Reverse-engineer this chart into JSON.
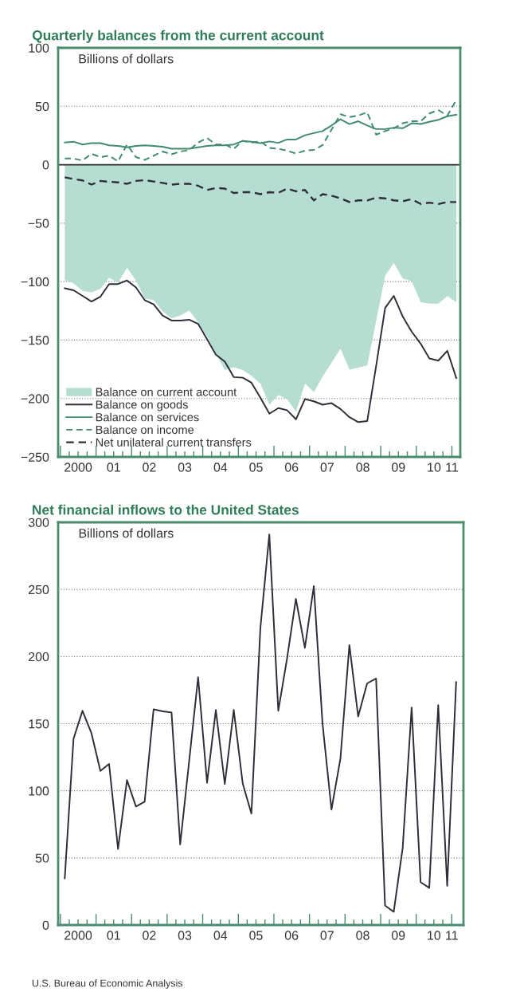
{
  "chart_data": [
    {
      "type": "line",
      "title": "Quarterly balances from the current account",
      "ylabel": "Billions of dollars",
      "x": [
        "2000-02-15",
        "2000-05-15",
        "2000-08-15",
        "2000-11-15",
        "2001-02-15",
        "2001-05-15",
        "2001-08-15",
        "2001-11-15",
        "2002-02-15",
        "2002-05-15",
        "2002-08-15",
        "2002-11-15",
        "2003-02-15",
        "2003-05-15",
        "2003-08-15",
        "2003-11-15",
        "2004-02-15",
        "2004-05-15",
        "2004-08-15",
        "2004-11-15",
        "2005-02-15",
        "2005-05-15",
        "2005-08-15",
        "2005-11-15",
        "2006-02-15",
        "2006-05-15",
        "2006-08-15",
        "2006-11-15",
        "2007-02-15",
        "2007-05-15",
        "2007-08-15",
        "2007-11-15",
        "2008-02-15",
        "2008-05-15",
        "2008-08-15",
        "2008-11-15",
        "2009-02-15",
        "2009-05-15",
        "2009-08-15",
        "2009-11-15",
        "2010-02-15",
        "2010-05-15",
        "2010-08-15",
        "2010-11-15",
        "2011-02-15"
      ],
      "xlim": [
        "1999-12-09",
        "2011-03-28"
      ],
      "xticks": [
        {
          "value": "2000-01-01",
          "label": null
        },
        {
          "value": "2000-04-01",
          "label": null
        },
        {
          "value": "2000-07-01",
          "label": "2000"
        },
        {
          "value": "2000-10-01",
          "label": null
        },
        {
          "value": "2001-01-01",
          "label": null
        },
        {
          "value": "2001-04-01",
          "label": null
        },
        {
          "value": "2001-07-01",
          "label": "01"
        },
        {
          "value": "2001-10-01",
          "label": null
        },
        {
          "value": "2002-01-01",
          "label": null
        },
        {
          "value": "2002-04-01",
          "label": null
        },
        {
          "value": "2002-07-01",
          "label": "02"
        },
        {
          "value": "2002-10-01",
          "label": null
        },
        {
          "value": "2003-01-01",
          "label": null
        },
        {
          "value": "2003-04-01",
          "label": null
        },
        {
          "value": "2003-07-01",
          "label": "03"
        },
        {
          "value": "2003-10-01",
          "label": null
        },
        {
          "value": "2004-01-01",
          "label": null
        },
        {
          "value": "2004-04-01",
          "label": null
        },
        {
          "value": "2004-07-01",
          "label": "04"
        },
        {
          "value": "2004-10-01",
          "label": null
        },
        {
          "value": "2005-01-01",
          "label": null
        },
        {
          "value": "2005-04-01",
          "label": null
        },
        {
          "value": "2005-07-01",
          "label": "05"
        },
        {
          "value": "2005-10-01",
          "label": null
        },
        {
          "value": "2006-01-01",
          "label": null
        },
        {
          "value": "2006-04-01",
          "label": null
        },
        {
          "value": "2006-07-01",
          "label": "06"
        },
        {
          "value": "2006-10-01",
          "label": null
        },
        {
          "value": "2007-01-01",
          "label": null
        },
        {
          "value": "2007-04-01",
          "label": null
        },
        {
          "value": "2007-07-01",
          "label": "07"
        },
        {
          "value": "2007-10-01",
          "label": null
        },
        {
          "value": "2008-01-01",
          "label": null
        },
        {
          "value": "2008-04-01",
          "label": null
        },
        {
          "value": "2008-07-01",
          "label": "08"
        },
        {
          "value": "2008-10-01",
          "label": null
        },
        {
          "value": "2009-01-01",
          "label": null
        },
        {
          "value": "2009-04-01",
          "label": null
        },
        {
          "value": "2009-07-01",
          "label": "09"
        },
        {
          "value": "2009-10-01",
          "label": null
        },
        {
          "value": "2010-01-01",
          "label": null
        },
        {
          "value": "2010-04-01",
          "label": null
        },
        {
          "value": "2010-07-01",
          "label": "10"
        },
        {
          "value": "2010-10-01",
          "label": null
        },
        {
          "value": "2011-01-01",
          "label": "11"
        }
      ],
      "ylim": [
        -250,
        100
      ],
      "yticks": [
        {
          "value": -250,
          "label": "−250"
        },
        {
          "value": -200,
          "label": "−200"
        },
        {
          "value": -150,
          "label": "−150"
        },
        {
          "value": -100,
          "label": "−100"
        },
        {
          "value": -50,
          "label": "−50"
        },
        0,
        50,
        100
      ],
      "grid": "y",
      "legend": "bottom left",
      "ref_lines": [
        {
          "axis": "y",
          "value": 0,
          "color": "#2a2a30"
        }
      ],
      "series": [
        {
          "name": "Balance on current account",
          "type": "area",
          "color": "#b5ddd2",
          "values": [
            -98.5,
            -101.4,
            -108,
            -109.3,
            -106.2,
            -96.6,
            -101,
            -88.2,
            -99,
            -114.6,
            -115.8,
            -125.4,
            -131.4,
            -129,
            -124.6,
            -135,
            -147,
            -161.3,
            -175.7,
            -173.3,
            -175.7,
            -180.5,
            -187.3,
            -205.3,
            -197,
            -200.5,
            -211.3,
            -187.3,
            -194.5,
            -181.3,
            -169.3,
            -157.3,
            -175.3,
            -173.6,
            -171.7,
            -133.3,
            -94.9,
            -84,
            -97.3,
            -99.7,
            -117.7,
            -118.9,
            -118.9,
            -112.4,
            -117.7
          ]
        },
        {
          "name": "Balance on goods",
          "color": "#2e2e38",
          "line_style": "solid",
          "values": [
            -105.7,
            -107.4,
            -112.2,
            -117,
            -112.9,
            -102.1,
            -102.1,
            -99,
            -105,
            -115.8,
            -119.4,
            -129,
            -133.3,
            -133.3,
            -132.6,
            -136.2,
            -149.3,
            -162.5,
            -168.5,
            -181.7,
            -182.2,
            -186.5,
            -199.3,
            -213,
            -208.2,
            -210,
            -217.8,
            -200.5,
            -202.4,
            -205.3,
            -204,
            -209,
            -216,
            -220.2,
            -219.3,
            -172,
            -122.5,
            -112.2,
            -130,
            -142.9,
            -153.2,
            -165.7,
            -167.6,
            -159.2,
            -182.5
          ]
        },
        {
          "name": "Balance on services",
          "color": "#3f8b6b",
          "line_style": "solid",
          "values": [
            19,
            19.7,
            17.3,
            18.5,
            18.5,
            16.6,
            16.1,
            14.9,
            16.1,
            16.6,
            16.1,
            15.4,
            13.7,
            13.7,
            13.7,
            14.9,
            16.1,
            16.6,
            16.6,
            17.3,
            20.4,
            19.7,
            18.5,
            19.9,
            18.7,
            21.6,
            21.6,
            25.2,
            27.1,
            28.8,
            33.6,
            38.9,
            34.8,
            37.2,
            33.6,
            30.5,
            30.5,
            31.7,
            31.2,
            35.5,
            34.8,
            36.7,
            38.4,
            41.5,
            42.7
          ]
        },
        {
          "name": "Balance on income",
          "color": "#3f8b6b",
          "line_style": "dashed",
          "values": [
            5.3,
            5.3,
            3.6,
            9.4,
            6.5,
            7.7,
            2.9,
            17.3,
            6.5,
            4.1,
            7.7,
            11.3,
            8.9,
            11.3,
            12.5,
            19,
            22.8,
            17.3,
            17.3,
            13.7,
            20.4,
            19,
            19.9,
            14.4,
            13.7,
            12,
            9.6,
            12,
            12.7,
            16.8,
            30,
            43.2,
            40.8,
            42,
            44.9,
            25.7,
            28.8,
            31.2,
            35.5,
            37.2,
            37.2,
            43.9,
            46.8,
            42,
            55.2
          ]
        },
        {
          "name": "Net unilateral current transfers",
          "color": "#2e2e38",
          "line_style": "dashed",
          "values": [
            -10.8,
            -12.2,
            -13.4,
            -17,
            -13.9,
            -14.6,
            -15.1,
            -16.3,
            -13.9,
            -13.2,
            -14.4,
            -15.6,
            -17,
            -16.3,
            -16.3,
            -18,
            -21.6,
            -19.9,
            -20.4,
            -24.2,
            -23.5,
            -23.5,
            -25.2,
            -23.5,
            -24,
            -20.4,
            -22.8,
            -21.6,
            -30.5,
            -25.2,
            -26.4,
            -28.8,
            -31.9,
            -30.5,
            -30.5,
            -28.3,
            -28.8,
            -30.5,
            -31.2,
            -29.5,
            -33.6,
            -32.4,
            -33.6,
            -31.9,
            -31.9
          ]
        }
      ]
    },
    {
      "type": "line",
      "title": "Net financial inflows to the United States",
      "ylabel": "Billions of dollars",
      "x": [
        "2000-02-15",
        "2000-05-15",
        "2000-08-15",
        "2000-11-15",
        "2001-02-15",
        "2001-05-15",
        "2001-08-15",
        "2001-11-15",
        "2002-02-15",
        "2002-05-15",
        "2002-08-15",
        "2002-11-15",
        "2003-02-15",
        "2003-05-15",
        "2003-08-15",
        "2003-11-15",
        "2004-02-15",
        "2004-05-15",
        "2004-08-15",
        "2004-11-15",
        "2005-02-15",
        "2005-05-15",
        "2005-08-15",
        "2005-11-15",
        "2006-02-15",
        "2006-05-15",
        "2006-08-15",
        "2006-11-15",
        "2007-02-15",
        "2007-05-15",
        "2007-08-15",
        "2007-11-15",
        "2008-02-15",
        "2008-05-15",
        "2008-08-15",
        "2008-11-15",
        "2009-02-15",
        "2009-05-15",
        "2009-08-15",
        "2009-11-15",
        "2010-02-15",
        "2010-05-15",
        "2010-08-15",
        "2010-11-15",
        "2011-02-15"
      ],
      "xlim": [
        "1999-12-09",
        "2011-05-01"
      ],
      "xticks": [
        {
          "value": "2000-01-01",
          "label": null
        },
        {
          "value": "2000-04-01",
          "label": null
        },
        {
          "value": "2000-07-01",
          "label": "2000"
        },
        {
          "value": "2000-10-01",
          "label": null
        },
        {
          "value": "2001-01-01",
          "label": null
        },
        {
          "value": "2001-04-01",
          "label": null
        },
        {
          "value": "2001-07-01",
          "label": "01"
        },
        {
          "value": "2001-10-01",
          "label": null
        },
        {
          "value": "2002-01-01",
          "label": null
        },
        {
          "value": "2002-04-01",
          "label": null
        },
        {
          "value": "2002-07-01",
          "label": "02"
        },
        {
          "value": "2002-10-01",
          "label": null
        },
        {
          "value": "2003-01-01",
          "label": null
        },
        {
          "value": "2003-04-01",
          "label": null
        },
        {
          "value": "2003-07-01",
          "label": "03"
        },
        {
          "value": "2003-10-01",
          "label": null
        },
        {
          "value": "2004-01-01",
          "label": null
        },
        {
          "value": "2004-04-01",
          "label": null
        },
        {
          "value": "2004-07-01",
          "label": "04"
        },
        {
          "value": "2004-10-01",
          "label": null
        },
        {
          "value": "2005-01-01",
          "label": null
        },
        {
          "value": "2005-04-01",
          "label": null
        },
        {
          "value": "2005-07-01",
          "label": "05"
        },
        {
          "value": "2005-10-01",
          "label": null
        },
        {
          "value": "2006-01-01",
          "label": null
        },
        {
          "value": "2006-04-01",
          "label": null
        },
        {
          "value": "2006-07-01",
          "label": "06"
        },
        {
          "value": "2006-10-01",
          "label": null
        },
        {
          "value": "2007-01-01",
          "label": null
        },
        {
          "value": "2007-04-01",
          "label": null
        },
        {
          "value": "2007-07-01",
          "label": "07"
        },
        {
          "value": "2007-10-01",
          "label": null
        },
        {
          "value": "2008-01-01",
          "label": null
        },
        {
          "value": "2008-04-01",
          "label": null
        },
        {
          "value": "2008-07-01",
          "label": "08"
        },
        {
          "value": "2008-10-01",
          "label": null
        },
        {
          "value": "2009-01-01",
          "label": null
        },
        {
          "value": "2009-04-01",
          "label": null
        },
        {
          "value": "2009-07-01",
          "label": "09"
        },
        {
          "value": "2009-10-01",
          "label": null
        },
        {
          "value": "2010-01-01",
          "label": null
        },
        {
          "value": "2010-04-01",
          "label": null
        },
        {
          "value": "2010-07-01",
          "label": "10"
        },
        {
          "value": "2010-10-01",
          "label": null
        },
        {
          "value": "2011-01-01",
          "label": "11"
        }
      ],
      "ylim": [
        0,
        300
      ],
      "yticks": [
        0,
        50,
        100,
        150,
        200,
        250,
        300
      ],
      "grid": "y",
      "annotations": [
        "U.S. Bureau of Economic Analysis"
      ],
      "series": [
        {
          "color": "#2e2e38",
          "line_style": "solid",
          "values": [
            34.8,
            138.7,
            159.6,
            142.9,
            114.8,
            120,
            56.7,
            108,
            88.3,
            91.8,
            160.7,
            159.2,
            158.4,
            60,
            122,
            184.6,
            106,
            160.2,
            105,
            160.2,
            105.4,
            83,
            221,
            291,
            159.6,
            198,
            243,
            206.5,
            252.5,
            150.2,
            86,
            124,
            208.6,
            155.4,
            180,
            183.6,
            14.6,
            9.8,
            57.4,
            162,
            31.9,
            27.7,
            163.8,
            29.2,
            181
          ]
        }
      ]
    }
  ]
}
